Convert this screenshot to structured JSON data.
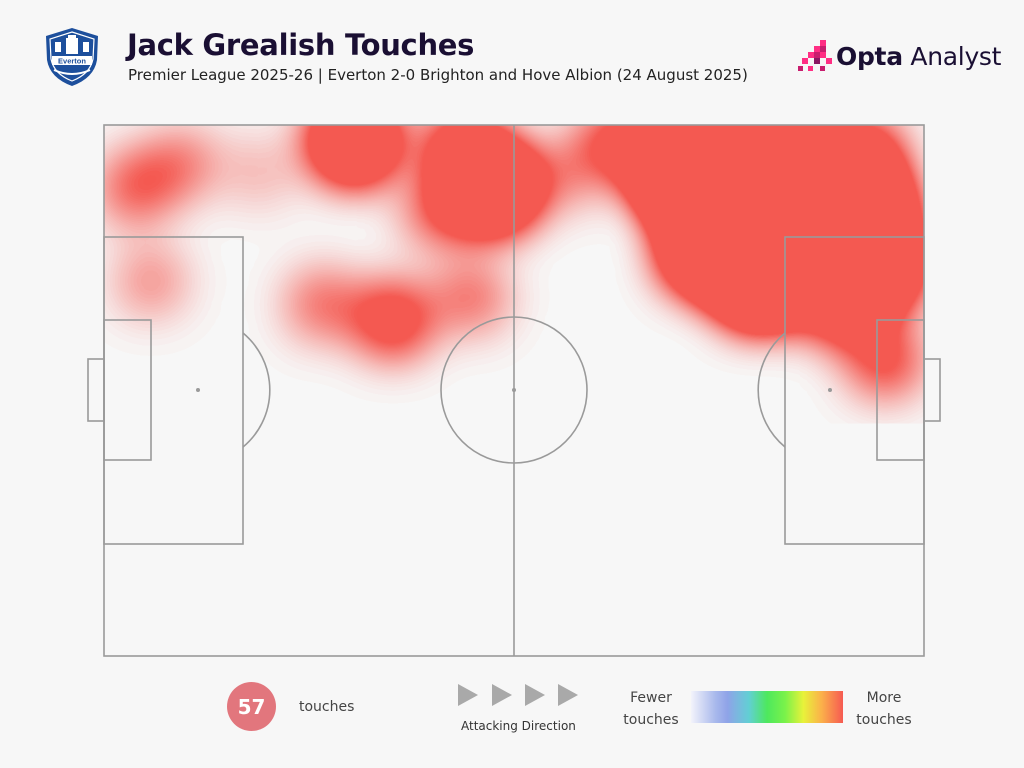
{
  "header": {
    "title": "Jack Grealish Touches",
    "subtitle": "Premier League 2025-26 | Everton 2-0 Brighton and Hove Albion (24 August 2025)",
    "club_crest_text": "Everton",
    "brand_bold": "Opta",
    "brand_light": " Analyst"
  },
  "footer": {
    "touch_count": "57",
    "touch_label": "touches",
    "direction_label": "Attacking Direction",
    "legend_low": "Fewer touches",
    "legend_high": "More touches"
  },
  "colors": {
    "title": "#1a0f33",
    "count_badge": "#e2767d",
    "pitch_lines": "#9a9a9a",
    "crest": "#1d4f9c",
    "heat_scale": [
      "#a9b9ec",
      "#4de85e",
      "#e8f23a",
      "#f65a52"
    ]
  },
  "chart_data": {
    "type": "heatmap",
    "title": "Jack Grealish Touches",
    "subtitle": "Premier League 2025-26 | Everton 2-0 Brighton and Hove Albion (24 August 2025)",
    "attacking_direction": "left-to-right",
    "pitch": {
      "length": 105,
      "width": 68
    },
    "total_touches": 57,
    "legend": {
      "low": "Fewer touches",
      "high": "More touches"
    },
    "hotspots": [
      {
        "x": 81,
        "y": 60,
        "intensity": 1.0
      },
      {
        "x": 75,
        "y": 62,
        "intensity": 0.8
      },
      {
        "x": 86,
        "y": 62,
        "intensity": 0.7
      },
      {
        "x": 91,
        "y": 55,
        "intensity": 0.7
      },
      {
        "x": 97,
        "y": 57,
        "intensity": 0.62
      },
      {
        "x": 99,
        "y": 50,
        "intensity": 0.5
      },
      {
        "x": 84,
        "y": 48,
        "intensity": 0.58
      },
      {
        "x": 77,
        "y": 52,
        "intensity": 0.5
      },
      {
        "x": 94,
        "y": 45,
        "intensity": 0.3
      },
      {
        "x": 100,
        "y": 38,
        "intensity": 0.22
      },
      {
        "x": 97,
        "y": 64,
        "intensity": 0.3
      },
      {
        "x": 66,
        "y": 66,
        "intensity": 0.22
      },
      {
        "x": 60,
        "y": 62,
        "intensity": 0.12
      },
      {
        "x": 32,
        "y": 66,
        "intensity": 0.45
      },
      {
        "x": 50,
        "y": 60,
        "intensity": 0.5
      },
      {
        "x": 46,
        "y": 65,
        "intensity": 0.28
      },
      {
        "x": 43,
        "y": 57,
        "intensity": 0.18
      },
      {
        "x": 37,
        "y": 43,
        "intensity": 0.26
      },
      {
        "x": 28,
        "y": 45,
        "intensity": 0.16
      },
      {
        "x": 47,
        "y": 46,
        "intensity": 0.16
      },
      {
        "x": 4,
        "y": 60,
        "intensity": 0.18
      },
      {
        "x": 10,
        "y": 63,
        "intensity": 0.14
      },
      {
        "x": 6,
        "y": 48,
        "intensity": 0.12
      },
      {
        "x": 20,
        "y": 62,
        "intensity": 0.08
      }
    ]
  }
}
